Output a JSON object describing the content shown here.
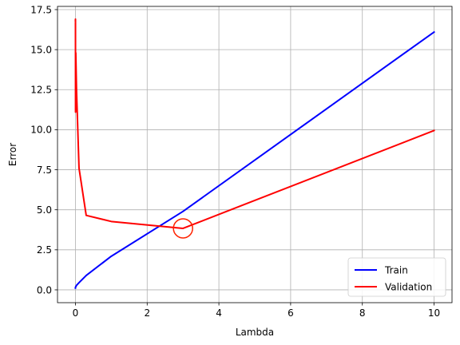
{
  "chart_data": {
    "type": "line",
    "title": "",
    "xlabel": "Lambda",
    "ylabel": "Error",
    "xlim": [
      -0.5,
      10.5
    ],
    "ylim": [
      -0.8,
      17.7
    ],
    "grid": true,
    "legend_position": "bottom-right",
    "x_ticks": [
      0,
      2,
      4,
      6,
      8,
      10
    ],
    "x_tick_labels": [
      "0",
      "2",
      "4",
      "6",
      "8",
      "10"
    ],
    "y_ticks": [
      0.0,
      2.5,
      5.0,
      7.5,
      10.0,
      12.5,
      15.0,
      17.5
    ],
    "y_tick_labels": [
      "0.0",
      "2.5",
      "5.0",
      "7.5",
      "10.0",
      "12.5",
      "15.0",
      "17.5"
    ],
    "x": [
      0,
      0.001,
      0.003,
      0.01,
      0.03,
      0.1,
      0.3,
      1,
      3,
      10
    ],
    "series": [
      {
        "name": "Train",
        "color": "#0000ff",
        "values": [
          0.11,
          0.16,
          0.17,
          0.2,
          0.28,
          0.45,
          0.9,
          2.1,
          4.9,
          16.1
        ]
      },
      {
        "name": "Validation",
        "color": "#ff0000",
        "values": [
          16.8,
          16.9,
          11.1,
          14.8,
          12.5,
          7.6,
          4.65,
          4.27,
          3.84,
          9.95
        ]
      }
    ],
    "annotation": {
      "type": "circle-marker",
      "x": 3,
      "y": 3.84,
      "color": "#ff2200"
    }
  }
}
